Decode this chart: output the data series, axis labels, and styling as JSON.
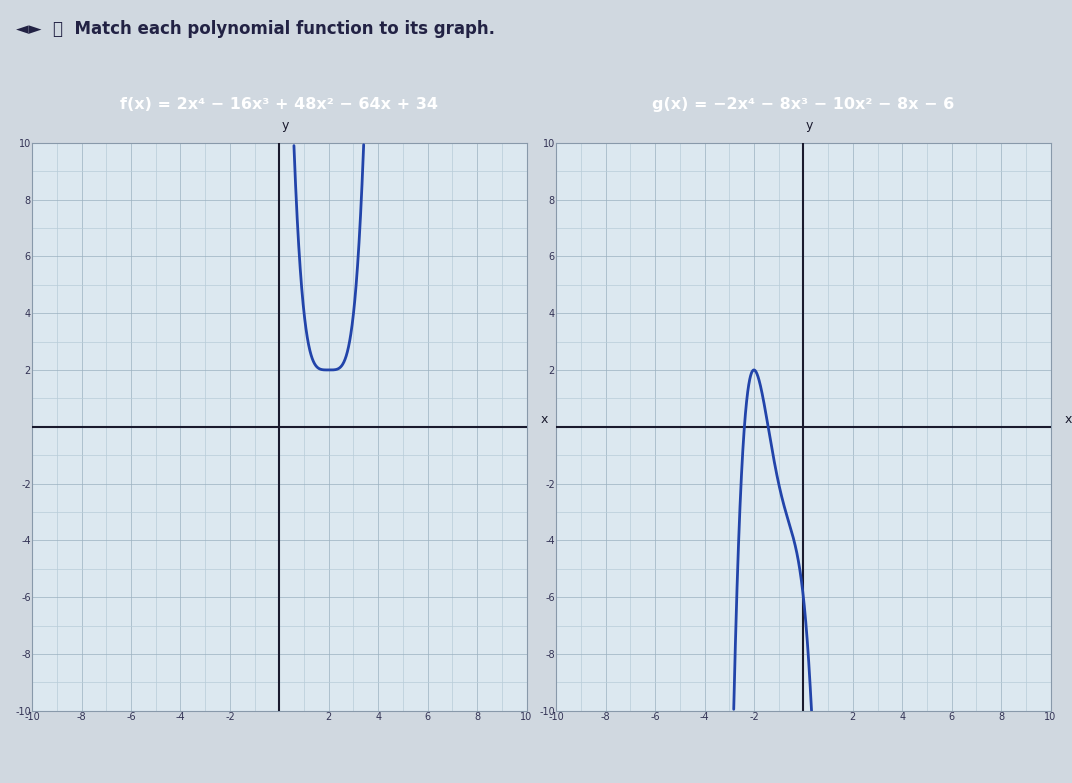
{
  "title": "Match each polynomial function to its graph.",
  "f_label": "f(x) = 2x⁴ − 16x³ + 48x² − 64x + 34",
  "g_label": "g(x) = −2x⁴ − 8x³ − 10x² − 8x − 6",
  "xlim": [
    -10,
    10
  ],
  "ylim": [
    -10,
    10
  ],
  "curve_color": "#2244aa",
  "label_bg_color": "#1535c0",
  "label_text_color": "#ffffff",
  "graph_bg_color": "#dce8f0",
  "grid_minor_color": "#b8ccd8",
  "grid_major_color": "#9ab0c0",
  "axis_color": "#1a1a2e",
  "outer_bg": "#d0d8e0",
  "panel_bg": "#e8eef2",
  "answer_box_color": "#b8ddf0",
  "title_color": "#222244"
}
